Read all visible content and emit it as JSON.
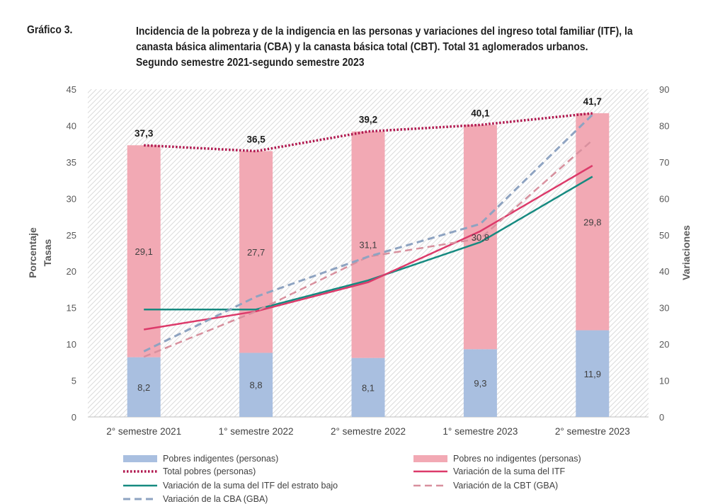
{
  "figure": {
    "label": "Gráfico 3.",
    "title_lines": [
      "Incidencia de la pobreza y de la indigencia en las personas y variaciones del ingreso total familiar (ITF), la",
      "canasta básica alimentaria (CBA) y la canasta básica total (CBT). Total 31 aglomerados urbanos.",
      "Segundo semestre 2021-segundo semestre 2023"
    ]
  },
  "colors": {
    "indigentes": "#a9bfe0",
    "no_indigentes": "#f2a9b4",
    "total_pobres": "#b0174e",
    "variacion_itf": "#dc3a6a",
    "variacion_itf_bajo": "#168a80",
    "variacion_cbt": "#d8909e",
    "variacion_cba": "#8ea3c1",
    "hatch": "#d9d9d9"
  },
  "chart_data": {
    "type": "bar",
    "categories": [
      "2° semestre 2021",
      "1° semestre 2022",
      "2° semestre 2022",
      "1° semestre 2023",
      "2° semestre 2023"
    ],
    "y_left": {
      "label_lines": [
        "Porcentaje",
        "Tasas"
      ],
      "ylim": [
        0,
        45
      ],
      "ticks": [
        "0",
        "5",
        "10",
        "15",
        "20",
        "25",
        "30",
        "35",
        "40",
        "45"
      ]
    },
    "y_right": {
      "label": "Variaciones",
      "ylim": [
        0,
        90
      ],
      "ticks": [
        "0",
        "10",
        "20",
        "30",
        "40",
        "50",
        "60",
        "70",
        "80",
        "90"
      ]
    },
    "bar_series": [
      {
        "name": "Pobres indigentes (personas)",
        "values": [
          8.2,
          8.8,
          8.1,
          9.3,
          11.9
        ],
        "labels": [
          "8,2",
          "8,8",
          "8,1",
          "9,3",
          "11,9"
        ],
        "axis": "left",
        "stack": true
      },
      {
        "name": "Pobres no indigentes (personas)",
        "values": [
          29.1,
          27.7,
          31.1,
          30.8,
          29.8
        ],
        "labels": [
          "29,1",
          "27,7",
          "31,1",
          "30,8",
          "29,8"
        ],
        "axis": "left",
        "stack": true
      }
    ],
    "line_series": [
      {
        "name": "Total pobres (personas)",
        "values": [
          37.3,
          36.5,
          39.2,
          40.1,
          41.7
        ],
        "labels": [
          "37,3",
          "36,5",
          "39,2",
          "40,1",
          "41,7"
        ],
        "axis": "left",
        "style": "dotted"
      },
      {
        "name": "Variación de la suma del ITF",
        "values": [
          24,
          29,
          37,
          51,
          69
        ],
        "axis": "right",
        "style": "solid"
      },
      {
        "name": "Variación de la suma del ITF del estrato bajo",
        "values": [
          29.5,
          29.5,
          37.5,
          48,
          66
        ],
        "axis": "right",
        "style": "solid"
      },
      {
        "name": "Variación de la CBT (GBA)",
        "values": [
          16.5,
          29,
          44,
          49,
          76
        ],
        "axis": "right",
        "style": "dashed"
      },
      {
        "name": "Variación de la CBA (GBA)",
        "values": [
          18,
          33,
          44,
          53,
          83
        ],
        "axis": "right",
        "style": "dashed"
      }
    ],
    "grid": false,
    "legend_position": "bottom"
  }
}
